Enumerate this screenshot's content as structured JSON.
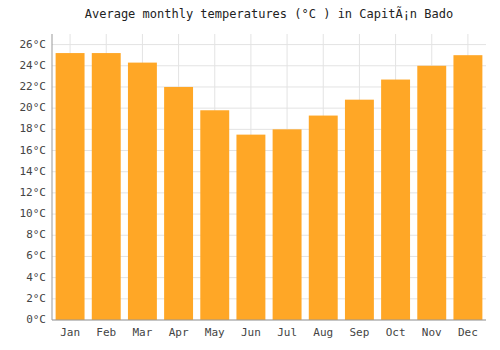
{
  "chart_data": {
    "type": "bar",
    "title": "Average monthly temperatures (°C ) in CapitÃ¡n Bado",
    "categories": [
      "Jan",
      "Feb",
      "Mar",
      "Apr",
      "May",
      "Jun",
      "Jul",
      "Aug",
      "Sep",
      "Oct",
      "Nov",
      "Dec"
    ],
    "values": [
      25.2,
      25.2,
      24.3,
      22.0,
      19.8,
      17.5,
      18.0,
      19.3,
      20.8,
      22.7,
      24.0,
      25.0
    ],
    "color": "#FFA726",
    "ylim": [
      0,
      27
    ],
    "yticks": [
      {
        "value": 0,
        "label": "0°C"
      },
      {
        "value": 2,
        "label": "2°C"
      },
      {
        "value": 4,
        "label": "4°C"
      },
      {
        "value": 6,
        "label": "6°C"
      },
      {
        "value": 8,
        "label": "8°C"
      },
      {
        "value": 10,
        "label": "10°C"
      },
      {
        "value": 12,
        "label": "12°C"
      },
      {
        "value": 14,
        "label": "14°C"
      },
      {
        "value": 16,
        "label": "16°C"
      },
      {
        "value": 18,
        "label": "18°C"
      },
      {
        "value": 20,
        "label": "20°C"
      },
      {
        "value": 22,
        "label": "22°C"
      },
      {
        "value": 24,
        "label": "24°C"
      },
      {
        "value": 26,
        "label": "26°C"
      }
    ],
    "grid": true
  }
}
